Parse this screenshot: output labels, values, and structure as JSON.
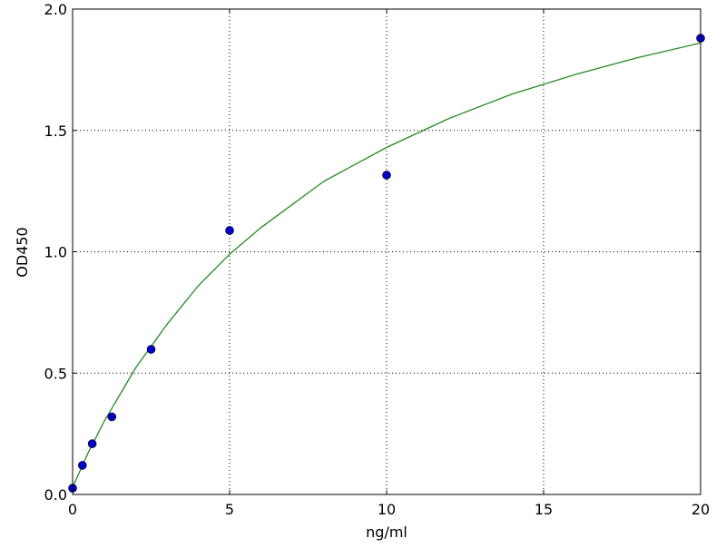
{
  "chart_data": {
    "type": "scatter",
    "title": "",
    "xlabel": "ng/ml",
    "ylabel": "OD450",
    "xlim": [
      0,
      20
    ],
    "ylim": [
      0,
      2.0
    ],
    "x_ticks": [
      "0",
      "5",
      "10",
      "15",
      "20"
    ],
    "y_ticks": [
      "0.0",
      "0.5",
      "1.0",
      "1.5",
      "2.0"
    ],
    "grid": true,
    "series": [
      {
        "kind": "points",
        "color": "#0000cc",
        "x": [
          0,
          0.3125,
          0.625,
          1.25,
          2.5,
          5,
          10,
          20
        ],
        "y": [
          0.026,
          0.12,
          0.209,
          0.32,
          0.598,
          1.088,
          1.316,
          1.88
        ]
      },
      {
        "kind": "fitted-line",
        "color": "#228b22",
        "x": [
          0,
          0.5,
          1,
          2,
          3,
          4,
          5,
          6,
          8,
          10,
          12,
          14,
          16,
          18,
          20
        ],
        "y": [
          0.03,
          0.173,
          0.3,
          0.52,
          0.7,
          0.86,
          0.99,
          1.1,
          1.29,
          1.43,
          1.55,
          1.65,
          1.73,
          1.8,
          1.86
        ]
      }
    ]
  }
}
